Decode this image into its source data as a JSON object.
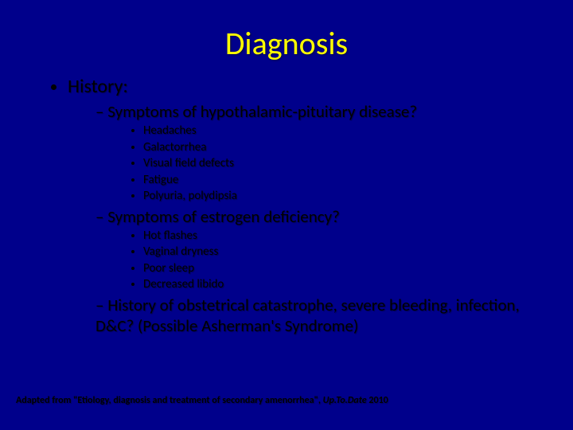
{
  "type": "presentation-slide",
  "background_color": "#00008b",
  "title": {
    "text": "Diagnosis",
    "color": "#ffff00",
    "fontsize": 40
  },
  "level1": {
    "fontsize": 24,
    "item": "History:"
  },
  "level2": {
    "fontsize": 21,
    "items": {
      "a": "Symptoms of hypothalamic-pituitary disease?",
      "b": "Symptoms of estrogen deficiency?",
      "c": "History of obstetrical catastrophe, severe bleeding, infection, D&C? (Possible Asherman's Syndrome)"
    }
  },
  "level3": {
    "fontsize": 15,
    "group_a": {
      "0": "Headaches",
      "1": "Galactorrhea",
      "2": "Visual field defects",
      "3": "Fatigue",
      "4": "Polyuria, polydipsia"
    },
    "group_b": {
      "0": "Hot flashes",
      "1": "Vaginal dryness",
      "2": "Poor sleep",
      "3": "Decreased libido"
    }
  },
  "footer": {
    "prefix": "Adapted from \"Etiology, diagnosis and treatment of secondary amenorrhea\", ",
    "italic": "Up.To.Date",
    "suffix": " 2010",
    "fontsize": 12
  }
}
